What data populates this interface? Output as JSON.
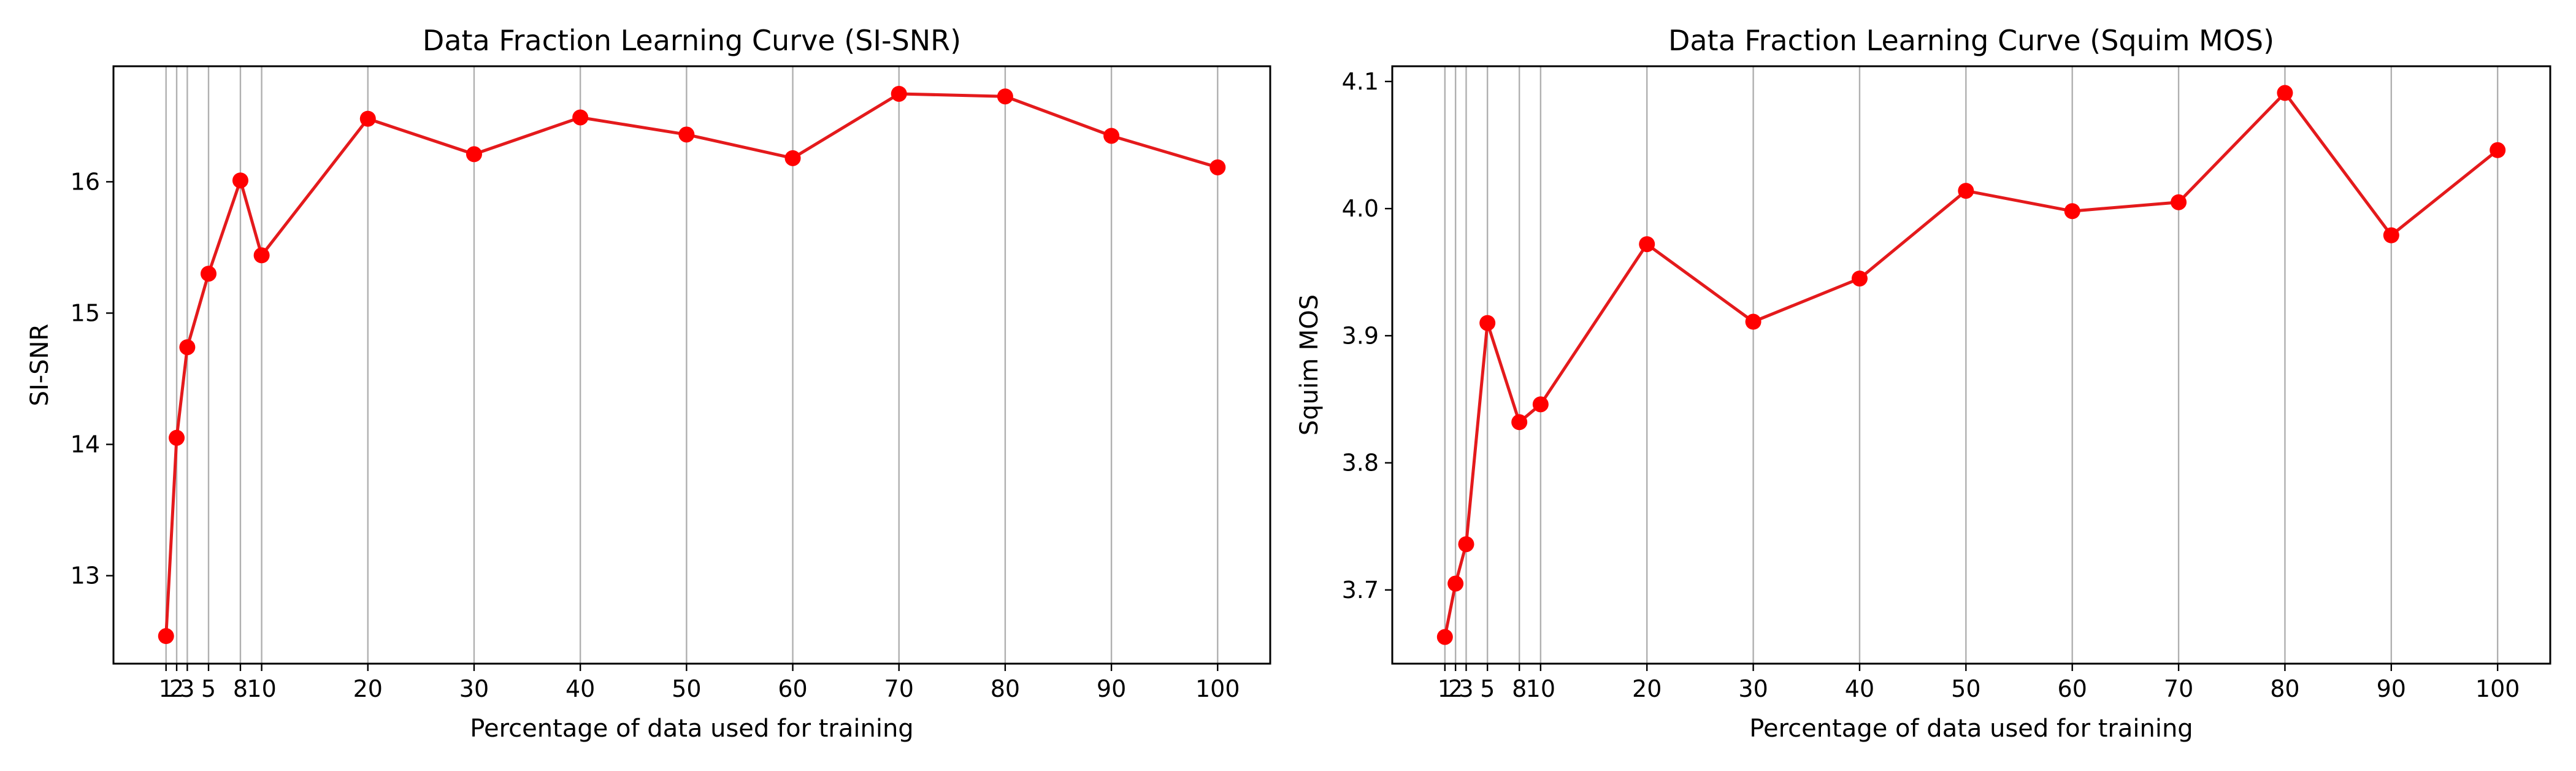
{
  "chart_data": [
    {
      "type": "line",
      "title": "Data Fraction Learning Curve (SI-SNR)",
      "xlabel": "Percentage of data used for training",
      "ylabel": "SI-SNR",
      "x": [
        1,
        2,
        3,
        5,
        8,
        10,
        20,
        30,
        40,
        50,
        60,
        70,
        80,
        90,
        100
      ],
      "x_tick_labels": [
        "1",
        "2",
        "3",
        "5",
        "8",
        "10",
        "20",
        "30",
        "40",
        "50",
        "60",
        "70",
        "80",
        "90",
        "100"
      ],
      "series": [
        {
          "values": [
            12.54,
            14.05,
            14.74,
            15.3,
            16.01,
            15.44,
            16.48,
            16.21,
            16.49,
            16.36,
            16.18,
            16.67,
            16.65,
            16.35,
            16.11
          ]
        }
      ],
      "y_ticks": [
        13,
        14,
        15,
        16
      ],
      "y_tick_labels": [
        "13",
        "14",
        "15",
        "16"
      ],
      "ylim": [
        12.33,
        16.88
      ],
      "xlim": [
        -3.95,
        104.95
      ],
      "grid": "vertical lines at x ticks",
      "line_color": "#e41a1c",
      "marker_color": "#ff0000",
      "grid_color": "#b0b0b0"
    },
    {
      "type": "line",
      "title": "Data Fraction Learning Curve (Squim MOS)",
      "xlabel": "Percentage of data used for training",
      "ylabel": "Squim MOS",
      "x": [
        1,
        2,
        3,
        5,
        8,
        10,
        20,
        30,
        40,
        50,
        60,
        70,
        80,
        90,
        100
      ],
      "x_tick_labels": [
        "1",
        "2",
        "3",
        "5",
        "8",
        "10",
        "20",
        "30",
        "40",
        "50",
        "60",
        "70",
        "80",
        "90",
        "100"
      ],
      "series": [
        {
          "values": [
            3.663,
            3.705,
            3.736,
            3.91,
            3.832,
            3.846,
            3.972,
            3.911,
            3.945,
            4.014,
            3.998,
            4.005,
            4.091,
            3.979,
            4.046
          ]
        }
      ],
      "y_ticks": [
        3.7,
        3.8,
        3.9,
        4.0,
        4.1
      ],
      "y_tick_labels": [
        "3.7",
        "3.8",
        "3.9",
        "4.0",
        "4.1"
      ],
      "ylim": [
        3.642,
        4.112
      ],
      "xlim": [
        -3.95,
        104.95
      ],
      "grid": "vertical lines at x ticks",
      "line_color": "#e41a1c",
      "marker_color": "#ff0000",
      "grid_color": "#b0b0b0"
    }
  ]
}
